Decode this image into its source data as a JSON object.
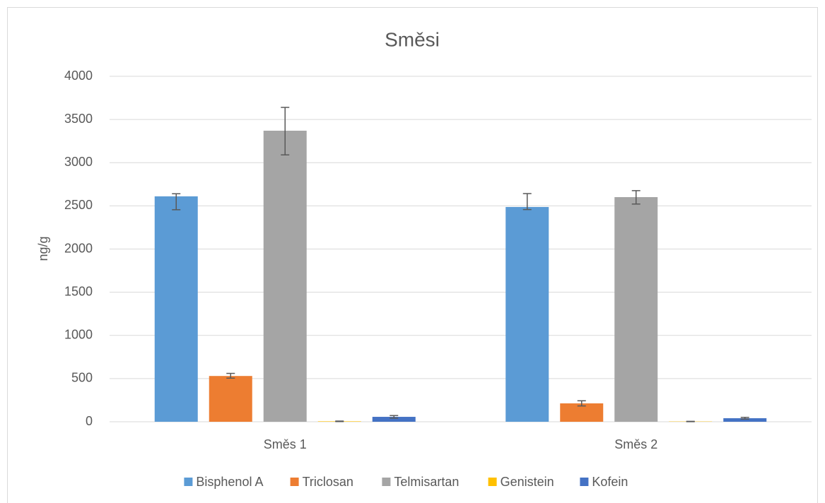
{
  "chart_data": {
    "type": "bar",
    "title": "Směsi",
    "y_label": "ng/g",
    "categories": [
      "Směs 1",
      "Směs 2"
    ],
    "series": [
      {
        "name": "Bisphenol A",
        "color": "#5b9bd5",
        "values": [
          2610,
          2487
        ],
        "error_high": [
          30,
          155
        ],
        "error_low": [
          155,
          30
        ]
      },
      {
        "name": "Triclosan",
        "color": "#ed7d31",
        "values": [
          530,
          213
        ],
        "error_high": [
          30,
          30
        ],
        "error_low": [
          25,
          30
        ]
      },
      {
        "name": "Telmisartan",
        "color": "#a5a5a5",
        "values": [
          3370,
          2601
        ],
        "error_high": [
          270,
          75
        ],
        "error_low": [
          280,
          80
        ]
      },
      {
        "name": "Genistein",
        "color": "#ffc000",
        "values": [
          5,
          3
        ],
        "error_high": [
          3,
          2
        ],
        "error_low": [
          3,
          2
        ]
      },
      {
        "name": "Kofein",
        "color": "#4472c4",
        "values": [
          57,
          41
        ],
        "error_high": [
          15,
          10
        ],
        "error_low": [
          15,
          10
        ]
      }
    ],
    "ylim": [
      0,
      4000
    ],
    "yticks": [
      0,
      500,
      1000,
      1500,
      2000,
      2500,
      3000,
      3500,
      4000
    ],
    "grid": true,
    "legend": "bottom"
  }
}
